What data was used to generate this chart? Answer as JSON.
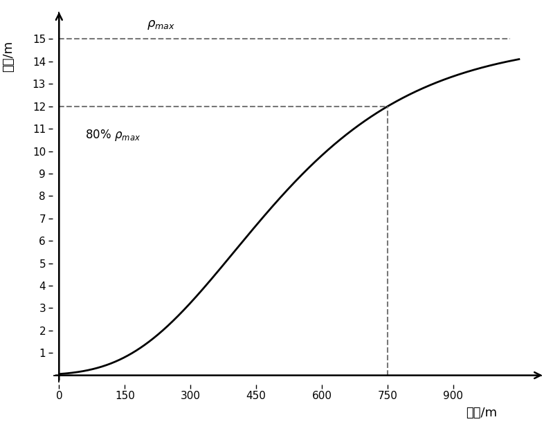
{
  "x_max": 1050,
  "y_max": 15,
  "rho_max": 15,
  "eighty_pct_y": 12,
  "eighty_pct_x": 750,
  "x_ticks": [
    0,
    150,
    300,
    450,
    600,
    750,
    900
  ],
  "y_ticks": [
    1,
    2,
    3,
    4,
    5,
    6,
    7,
    8,
    9,
    10,
    11,
    12,
    13,
    14,
    15
  ],
  "xlabel": "位置/m",
  "ylabel": "深度/m",
  "curve_color": "#000000",
  "dashed_color": "#777777",
  "background_color": "#ffffff",
  "linewidth": 2.0,
  "dashed_linewidth": 1.5,
  "gompertz_a": 15.0,
  "gompertz_b": 4.5,
  "gompertz_c": 0.005
}
